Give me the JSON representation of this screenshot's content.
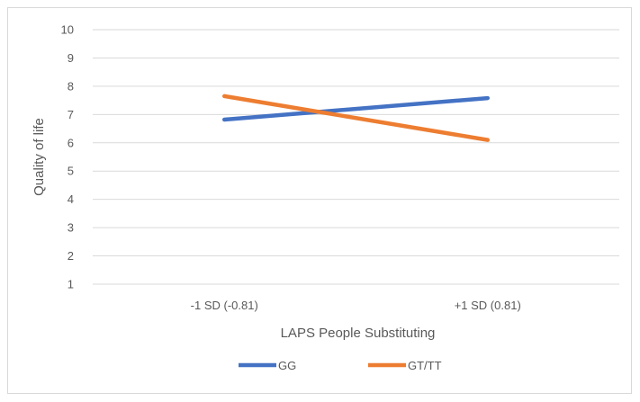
{
  "chart_data": {
    "type": "line",
    "title": "",
    "xlabel": "LAPS People Substituting",
    "ylabel": "Quality of life",
    "categories": [
      "-1 SD (-0.81)",
      "+1 SD (0.81)"
    ],
    "ylim": [
      1,
      10
    ],
    "yticks": [
      1,
      2,
      3,
      4,
      5,
      6,
      7,
      8,
      9,
      10
    ],
    "grid": true,
    "legend_position": "bottom",
    "series": [
      {
        "name": "GG",
        "color": "#4472C4",
        "values": [
          6.82,
          7.58
        ]
      },
      {
        "name": "GT/TT",
        "color": "#ED7D31",
        "values": [
          7.65,
          6.1
        ]
      }
    ]
  }
}
